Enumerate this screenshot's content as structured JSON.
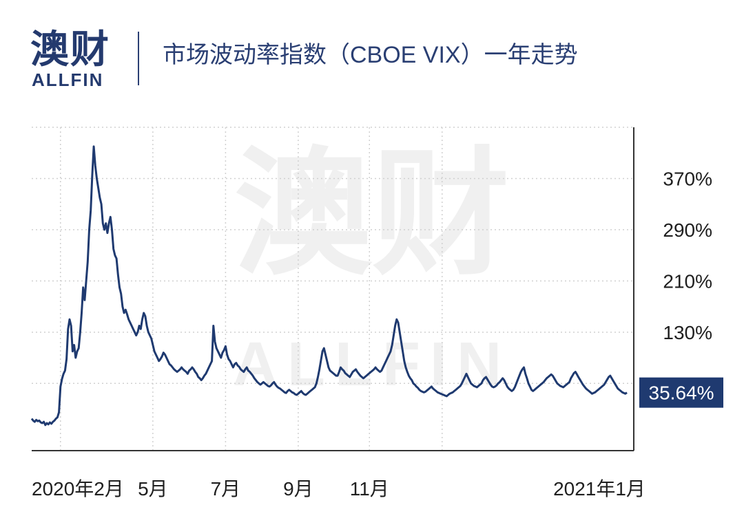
{
  "logo": {
    "cn": "澳财",
    "en": "ALLFIN"
  },
  "header": {
    "title": "市场波动率指数（CBOE VIX）一年走势"
  },
  "watermark": {
    "cn": "澳财",
    "en": "ALLFIN"
  },
  "colors": {
    "line": "#1f3a70",
    "brand": "#243a6e",
    "accent": "#c8305a",
    "grid": "#d0d0d0",
    "label_bg": "#1f3a70"
  },
  "chart_data": {
    "type": "line",
    "title": "市场波动率指数（CBOE VIX）一年走势",
    "xlabel": "",
    "ylabel": "",
    "y_unit": "%",
    "ylim": [
      -55,
      450
    ],
    "y_ticks": [
      130,
      210,
      290,
      370
    ],
    "y_tick_labels": [
      "130%",
      "210%",
      "290%",
      "370%"
    ],
    "x_ticks": [
      {
        "label": "2020年2月",
        "index": 19
      },
      {
        "label": "5月",
        "index": 80
      },
      {
        "label": "7月",
        "index": 128
      },
      {
        "label": "9月",
        "index": 176
      },
      {
        "label": "11月",
        "index": 223
      },
      {
        "label": "2021年1月",
        "index": 271
      }
    ],
    "grid": true,
    "legend": "none",
    "last_value_label": "35.64%",
    "series": [
      {
        "values": [
          -5,
          -8,
          -10,
          -7,
          -9,
          -8,
          -11,
          -12,
          -10,
          -15,
          -12,
          -14,
          -11,
          -13,
          -10,
          -8,
          -5,
          -3,
          5,
          45,
          57,
          65,
          70,
          88,
          135,
          150,
          140,
          100,
          110,
          90,
          100,
          105,
          130,
          160,
          200,
          180,
          210,
          240,
          290,
          320,
          375,
          420,
          390,
          370,
          355,
          340,
          330,
          300,
          290,
          300,
          285,
          300,
          310,
          290,
          260,
          250,
          245,
          220,
          200,
          190,
          170,
          160,
          165,
          158,
          150,
          145,
          140,
          135,
          130,
          125,
          130,
          140,
          135,
          150,
          160,
          155,
          140,
          130,
          125,
          120,
          110,
          100,
          95,
          90,
          85,
          88,
          92,
          98,
          95,
          90,
          85,
          80,
          78,
          75,
          72,
          70,
          68,
          70,
          72,
          75,
          72,
          70,
          68,
          65,
          70,
          72,
          75,
          72,
          68,
          65,
          60,
          58,
          55,
          58,
          62,
          65,
          70,
          75,
          80,
          85,
          140,
          115,
          105,
          100,
          95,
          90,
          98,
          102,
          108,
          95,
          88,
          85,
          80,
          75,
          80,
          82,
          78,
          76,
          72,
          70,
          68,
          72,
          75,
          70,
          68,
          65,
          62,
          58,
          55,
          52,
          50,
          48,
          50,
          52,
          50,
          48,
          46,
          45,
          47,
          50,
          52,
          48,
          45,
          43,
          42,
          40,
          38,
          36,
          35,
          38,
          40,
          38,
          36,
          35,
          33,
          32,
          34,
          36,
          38,
          35,
          33,
          32,
          34,
          36,
          38,
          40,
          42,
          44,
          50,
          60,
          72,
          86,
          100,
          105,
          95,
          85,
          75,
          70,
          68,
          66,
          64,
          62,
          62,
          68,
          75,
          72,
          70,
          66,
          64,
          62,
          60,
          64,
          68,
          70,
          72,
          68,
          65,
          62,
          60,
          58,
          60,
          62,
          64,
          66,
          68,
          70,
          72,
          75,
          72,
          70,
          68,
          70,
          75,
          80,
          85,
          90,
          95,
          100,
          110,
          125,
          140,
          150,
          145,
          130,
          115,
          100,
          85,
          75,
          68,
          62,
          58,
          55,
          50,
          48,
          45,
          43,
          40,
          38,
          37,
          36,
          37,
          39,
          41,
          43,
          45,
          42,
          40,
          38,
          36,
          35,
          34,
          33,
          32,
          31,
          30,
          32,
          34,
          35,
          36,
          38,
          40,
          42,
          44,
          46,
          50,
          55,
          60,
          65,
          60,
          55,
          50,
          48,
          46,
          45,
          44,
          46,
          48,
          50,
          55,
          58,
          60,
          56,
          52,
          48,
          45,
          44,
          45,
          47,
          50,
          52,
          55,
          58,
          55,
          50,
          45,
          42,
          40,
          38,
          40,
          44,
          50,
          56,
          62,
          68,
          72,
          75,
          65,
          58,
          50,
          45,
          40,
          38,
          40,
          42,
          44,
          46,
          48,
          50,
          52,
          55,
          58,
          60,
          62,
          64,
          62,
          58,
          54,
          50,
          48,
          46,
          45,
          44,
          46,
          48,
          50,
          52,
          58,
          62,
          66,
          68,
          64,
          60,
          56,
          52,
          48,
          45,
          42,
          40,
          38,
          36,
          34,
          35,
          36,
          38,
          40,
          42,
          44,
          46,
          48,
          52,
          56,
          60,
          62,
          58,
          54,
          50,
          46,
          42,
          40,
          38,
          36,
          35,
          34,
          35.64
        ]
      }
    ]
  }
}
